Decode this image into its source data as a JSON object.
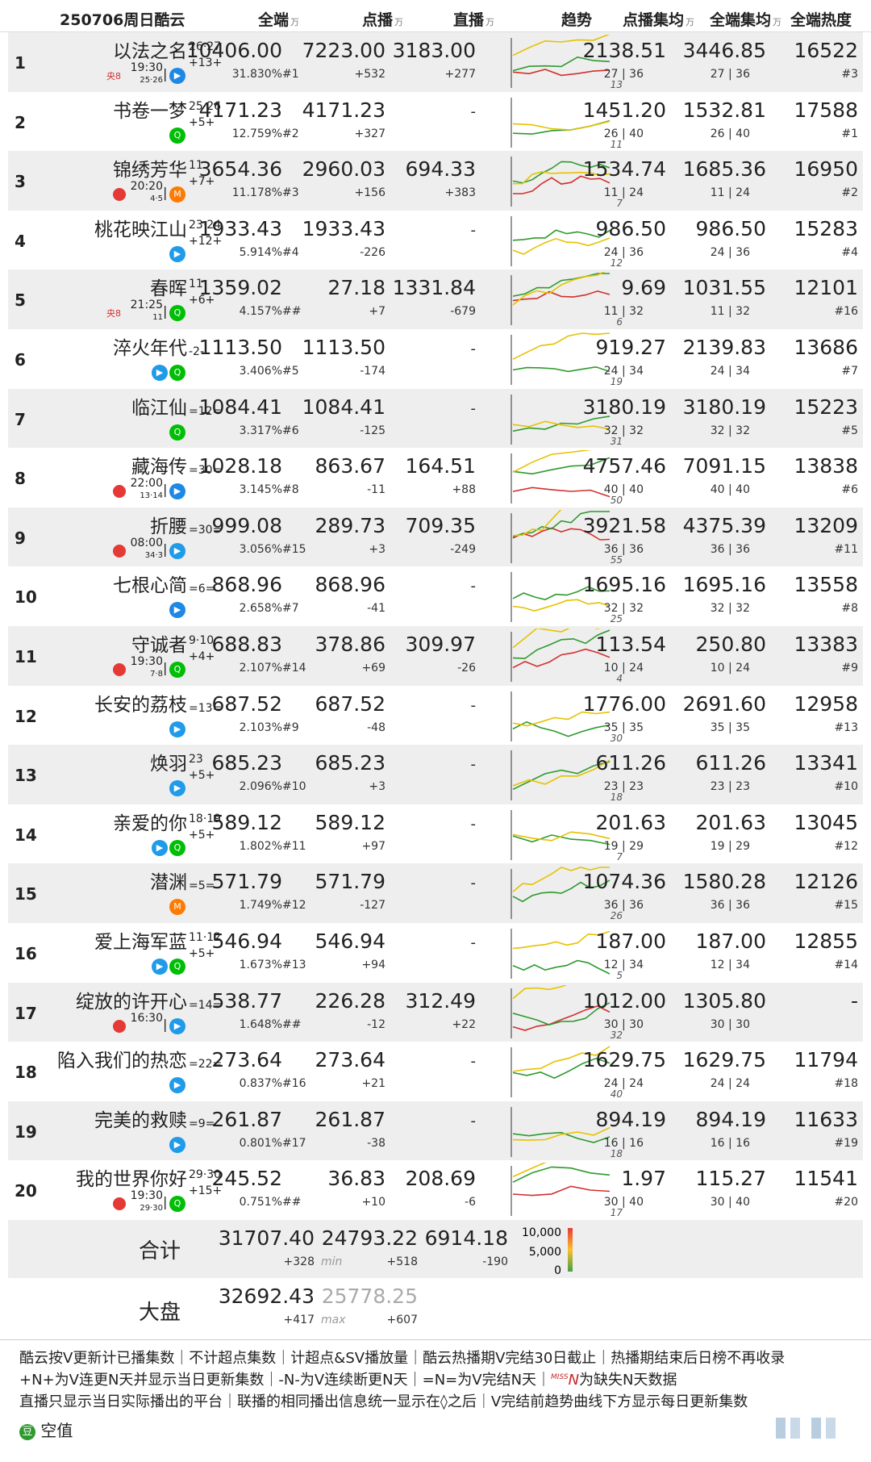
{
  "title": "250706周日酷云",
  "headers": {
    "all": "全端",
    "vod": "点播",
    "live": "直播",
    "trend": "趋势",
    "vod_avg": "点播集均",
    "all_avg": "全端集均",
    "heat": "全端热度",
    "unit": "万"
  },
  "chart_data": {
    "type": "table",
    "columns": [
      "rank",
      "name",
      "episodes",
      "update",
      "all",
      "all_pct",
      "vod",
      "vod_rank",
      "vod_delta",
      "live",
      "live_delta",
      "vod_avg",
      "vod_avg_eps",
      "all_avg",
      "all_avg_eps",
      "heat",
      "heat_rank",
      "trend_label",
      "channel_text",
      "channel_date",
      "platforms"
    ],
    "rows": [
      {
        "rank": "1",
        "name": "以法之名",
        "episodes": "26·27",
        "update": "+13+",
        "all": "10406.00",
        "all_pct": "31.830%",
        "vod": "7223.00",
        "vod_rank": "#1",
        "vod_delta": "+532",
        "live": "3183.00",
        "live_delta": "+277",
        "vod_avg": "2138.51",
        "vod_avg_eps": "27 | 36",
        "all_avg": "3446.85",
        "all_avg_eps": "27 | 36",
        "heat": "16522",
        "heat_rank": "#3",
        "trend_label": "13",
        "channel_text": "19:30",
        "channel_date": "25·26",
        "channel_tag": "央8",
        "platforms": [
          "youku"
        ]
      },
      {
        "rank": "2",
        "name": "书卷一梦",
        "episodes": "25·26",
        "update": "+5+",
        "all": "4171.23",
        "all_pct": "12.759%",
        "vod": "4171.23",
        "vod_rank": "#2",
        "vod_delta": "+327",
        "live": "-",
        "live_delta": "",
        "vod_avg": "1451.20",
        "vod_avg_eps": "26 | 40",
        "all_avg": "1532.81",
        "all_avg_eps": "26 | 40",
        "heat": "17588",
        "heat_rank": "#1",
        "trend_label": "11",
        "channel_text": "",
        "channel_date": "",
        "channel_tag": "",
        "platforms": [
          "iqiyi"
        ]
      },
      {
        "rank": "3",
        "name": "锦绣芳华",
        "episodes": "11",
        "update": "+7+",
        "all": "3654.36",
        "all_pct": "11.178%",
        "vod": "2960.03",
        "vod_rank": "#3",
        "vod_delta": "+156",
        "live": "694.33",
        "live_delta": "+383",
        "vod_avg": "1534.74",
        "vod_avg_eps": "11 | 24",
        "all_avg": "1685.36",
        "all_avg_eps": "11 | 24",
        "heat": "16950",
        "heat_rank": "#2",
        "trend_label": "7",
        "channel_text": "20:20",
        "channel_date": "4·5",
        "channel_tag": "",
        "platforms": [
          "mgtv"
        ]
      },
      {
        "rank": "4",
        "name": "桃花映江山",
        "episodes": "23·24",
        "update": "+12+",
        "all": "1933.43",
        "all_pct": "5.914%",
        "vod": "1933.43",
        "vod_rank": "#4",
        "vod_delta": "-226",
        "live": "-",
        "live_delta": "",
        "vod_avg": "986.50",
        "vod_avg_eps": "24 | 36",
        "all_avg": "986.50",
        "all_avg_eps": "24 | 36",
        "heat": "15283",
        "heat_rank": "#4",
        "trend_label": "12",
        "channel_text": "",
        "channel_date": "",
        "channel_tag": "",
        "platforms": [
          "tencent"
        ]
      },
      {
        "rank": "5",
        "name": "春晖",
        "episodes": "11",
        "update": "+6+",
        "all": "1359.02",
        "all_pct": "4.157%",
        "vod": "27.18",
        "vod_rank": "##",
        "vod_delta": "+7",
        "live": "1331.84",
        "live_delta": "-679",
        "vod_avg": "9.69",
        "vod_avg_eps": "11 | 32",
        "all_avg": "1031.55",
        "all_avg_eps": "11 | 32",
        "heat": "12101",
        "heat_rank": "#16",
        "trend_label": "6",
        "channel_text": "21:25",
        "channel_date": "11",
        "channel_tag": "央8",
        "platforms": [
          "iqiyi"
        ]
      },
      {
        "rank": "6",
        "name": "淬火年代",
        "episodes": "",
        "update": "-2-",
        "all": "1113.50",
        "all_pct": "3.406%",
        "vod": "1113.50",
        "vod_rank": "#5",
        "vod_delta": "-174",
        "live": "-",
        "live_delta": "",
        "vod_avg": "919.27",
        "vod_avg_eps": "24 | 34",
        "all_avg": "2139.83",
        "all_avg_eps": "24 | 34",
        "heat": "13686",
        "heat_rank": "#7",
        "trend_label": "19",
        "channel_text": "",
        "channel_date": "",
        "channel_tag": "",
        "platforms": [
          "tencent",
          "iqiyi"
        ]
      },
      {
        "rank": "7",
        "name": "临江仙",
        "episodes": "",
        "update": "=12=",
        "all": "1084.41",
        "all_pct": "3.317%",
        "vod": "1084.41",
        "vod_rank": "#6",
        "vod_delta": "-125",
        "live": "-",
        "live_delta": "",
        "vod_avg": "3180.19",
        "vod_avg_eps": "32 | 32",
        "all_avg": "3180.19",
        "all_avg_eps": "32 | 32",
        "heat": "15223",
        "heat_rank": "#5",
        "trend_label": "31",
        "channel_text": "",
        "channel_date": "",
        "channel_tag": "",
        "platforms": [
          "iqiyi"
        ]
      },
      {
        "rank": "8",
        "name": "藏海传",
        "episodes": "",
        "update": "=30=",
        "all": "1028.18",
        "all_pct": "3.145%",
        "vod": "863.67",
        "vod_rank": "#8",
        "vod_delta": "-11",
        "live": "164.51",
        "live_delta": "+88",
        "vod_avg": "4757.46",
        "vod_avg_eps": "40 | 40",
        "all_avg": "7091.15",
        "all_avg_eps": "40 | 40",
        "heat": "13838",
        "heat_rank": "#6",
        "trend_label": "50",
        "channel_text": "22:00",
        "channel_date": "13·14",
        "channel_tag": "",
        "platforms": [
          "youku"
        ]
      },
      {
        "rank": "9",
        "name": "折腰",
        "episodes": "",
        "update": "=30=",
        "all": "999.08",
        "all_pct": "3.056%",
        "vod": "289.73",
        "vod_rank": "#15",
        "vod_delta": "+3",
        "live": "709.35",
        "live_delta": "-249",
        "vod_avg": "3921.58",
        "vod_avg_eps": "36 | 36",
        "all_avg": "4375.39",
        "all_avg_eps": "36 | 36",
        "heat": "13209",
        "heat_rank": "#11",
        "trend_label": "55",
        "channel_text": "08:00",
        "channel_date": "34·3",
        "channel_tag": "",
        "platforms": [
          "tencent"
        ]
      },
      {
        "rank": "10",
        "name": "七根心简",
        "episodes": "",
        "update": "=6=",
        "all": "868.96",
        "all_pct": "2.658%",
        "vod": "868.96",
        "vod_rank": "#7",
        "vod_delta": "-41",
        "live": "-",
        "live_delta": "",
        "vod_avg": "1695.16",
        "vod_avg_eps": "32 | 32",
        "all_avg": "1695.16",
        "all_avg_eps": "32 | 32",
        "heat": "13558",
        "heat_rank": "#8",
        "trend_label": "25",
        "channel_text": "",
        "channel_date": "",
        "channel_tag": "",
        "platforms": [
          "youku"
        ]
      },
      {
        "rank": "11",
        "name": "守诚者",
        "episodes": "9·10",
        "update": "+4+",
        "all": "688.83",
        "all_pct": "2.107%",
        "vod": "378.86",
        "vod_rank": "#14",
        "vod_delta": "+69",
        "live": "309.97",
        "live_delta": "-26",
        "vod_avg": "113.54",
        "vod_avg_eps": "10 | 24",
        "all_avg": "250.80",
        "all_avg_eps": "10 | 24",
        "heat": "13383",
        "heat_rank": "#9",
        "trend_label": "4",
        "channel_text": "19:30",
        "channel_date": "7·8",
        "channel_tag": "",
        "platforms": [
          "iqiyi"
        ]
      },
      {
        "rank": "12",
        "name": "长安的荔枝",
        "episodes": "",
        "update": "=13=",
        "all": "687.52",
        "all_pct": "2.103%",
        "vod": "687.52",
        "vod_rank": "#9",
        "vod_delta": "-48",
        "live": "-",
        "live_delta": "",
        "vod_avg": "1776.00",
        "vod_avg_eps": "35 | 35",
        "all_avg": "2691.60",
        "all_avg_eps": "35 | 35",
        "heat": "12958",
        "heat_rank": "#13",
        "trend_label": "30",
        "channel_text": "",
        "channel_date": "",
        "channel_tag": "",
        "platforms": [
          "tencent"
        ]
      },
      {
        "rank": "13",
        "name": "焕羽",
        "episodes": "23",
        "update": "+5+",
        "all": "685.23",
        "all_pct": "2.096%",
        "vod": "685.23",
        "vod_rank": "#10",
        "vod_delta": "+3",
        "live": "-",
        "live_delta": "",
        "vod_avg": "611.26",
        "vod_avg_eps": "23 | 23",
        "all_avg": "611.26",
        "all_avg_eps": "23 | 23",
        "heat": "13341",
        "heat_rank": "#10",
        "trend_label": "18",
        "channel_text": "",
        "channel_date": "",
        "channel_tag": "",
        "platforms": [
          "tencent"
        ]
      },
      {
        "rank": "14",
        "name": "亲爱的你",
        "episodes": "18·19",
        "update": "+5+",
        "all": "589.12",
        "all_pct": "1.802%",
        "vod": "589.12",
        "vod_rank": "#11",
        "vod_delta": "+97",
        "live": "-",
        "live_delta": "",
        "vod_avg": "201.63",
        "vod_avg_eps": "19 | 29",
        "all_avg": "201.63",
        "all_avg_eps": "19 | 29",
        "heat": "13045",
        "heat_rank": "#12",
        "trend_label": "7",
        "channel_text": "",
        "channel_date": "",
        "channel_tag": "",
        "platforms": [
          "tencent",
          "iqiyi"
        ]
      },
      {
        "rank": "15",
        "name": "潜渊",
        "episodes": "",
        "update": "=5=",
        "all": "571.79",
        "all_pct": "1.749%",
        "vod": "571.79",
        "vod_rank": "#12",
        "vod_delta": "-127",
        "live": "-",
        "live_delta": "",
        "vod_avg": "1074.36",
        "vod_avg_eps": "36 | 36",
        "all_avg": "1580.28",
        "all_avg_eps": "36 | 36",
        "heat": "12126",
        "heat_rank": "#15",
        "trend_label": "26",
        "channel_text": "",
        "channel_date": "",
        "channel_tag": "",
        "platforms": [
          "mgtv"
        ]
      },
      {
        "rank": "16",
        "name": "爱上海军蓝",
        "episodes": "11·12",
        "update": "+5+",
        "all": "546.94",
        "all_pct": "1.673%",
        "vod": "546.94",
        "vod_rank": "#13",
        "vod_delta": "+94",
        "live": "-",
        "live_delta": "",
        "vod_avg": "187.00",
        "vod_avg_eps": "12 | 34",
        "all_avg": "187.00",
        "all_avg_eps": "12 | 34",
        "heat": "12855",
        "heat_rank": "#14",
        "trend_label": "5",
        "channel_text": "",
        "channel_date": "",
        "channel_tag": "",
        "platforms": [
          "tencent",
          "iqiyi"
        ]
      },
      {
        "rank": "17",
        "name": "绽放的许开心",
        "episodes": "",
        "update": "=14=",
        "all": "538.77",
        "all_pct": "1.648%",
        "vod": "226.28",
        "vod_rank": "##",
        "vod_delta": "-12",
        "live": "312.49",
        "live_delta": "+22",
        "vod_avg": "1012.00",
        "vod_avg_eps": "30 | 30",
        "all_avg": "1305.80",
        "all_avg_eps": "30 | 30",
        "heat": "-",
        "heat_rank": "",
        "trend_label": "32",
        "channel_text": "16:30",
        "channel_date": "",
        "channel_tag": "",
        "platforms": [
          "tencent"
        ]
      },
      {
        "rank": "18",
        "name": "陷入我们的热恋",
        "episodes": "",
        "update": "=22=",
        "all": "273.64",
        "all_pct": "0.837%",
        "vod": "273.64",
        "vod_rank": "#16",
        "vod_delta": "+21",
        "live": "-",
        "live_delta": "",
        "vod_avg": "1629.75",
        "vod_avg_eps": "24 | 24",
        "all_avg": "1629.75",
        "all_avg_eps": "24 | 24",
        "heat": "11794",
        "heat_rank": "#18",
        "trend_label": "40",
        "channel_text": "",
        "channel_date": "",
        "channel_tag": "",
        "platforms": [
          "tencent"
        ]
      },
      {
        "rank": "19",
        "name": "完美的救赎",
        "episodes": "",
        "update": "=9=",
        "all": "261.87",
        "all_pct": "0.801%",
        "vod": "261.87",
        "vod_rank": "#17",
        "vod_delta": "-38",
        "live": "-",
        "live_delta": "",
        "vod_avg": "894.19",
        "vod_avg_eps": "16 | 16",
        "all_avg": "894.19",
        "all_avg_eps": "16 | 16",
        "heat": "11633",
        "heat_rank": "#19",
        "trend_label": "18",
        "channel_text": "",
        "channel_date": "",
        "channel_tag": "",
        "platforms": [
          "tencent"
        ]
      },
      {
        "rank": "20",
        "name": "我的世界你好",
        "episodes": "29·30",
        "update": "+15+",
        "all": "245.52",
        "all_pct": "0.751%",
        "vod": "36.83",
        "vod_rank": "##",
        "vod_delta": "+10",
        "live": "208.69",
        "live_delta": "-6",
        "vod_avg": "1.97",
        "vod_avg_eps": "30 | 40",
        "all_avg": "115.27",
        "all_avg_eps": "30 | 40",
        "heat": "11541",
        "heat_rank": "#20",
        "trend_label": "17",
        "channel_text": "19:30",
        "channel_date": "29·30",
        "channel_tag": "",
        "platforms": [
          "iqiyi"
        ]
      }
    ],
    "totals": {
      "label": "合计",
      "all": "31707.40",
      "all_delta": "+328",
      "vod": "24793.22",
      "vod_note": "min",
      "vod_delta": "+518",
      "live": "6914.18",
      "live_delta": "-190"
    },
    "market": {
      "label": "大盘",
      "all": "32692.43",
      "all_delta": "+417",
      "vod": "25778.25",
      "vod_note": "max",
      "vod_delta": "+607"
    },
    "scale": {
      "labels": [
        "10,000",
        "5,000",
        "0"
      ],
      "colors": [
        "#e53935",
        "#fbc02d",
        "#43a047"
      ]
    }
  },
  "notes": [
    "酷云按V更新计已播集数｜不计超点集数｜计超点&SV播放量｜酷云热播期V完结30日截止｜热播期结束后日榜不再收录",
    "+N+为V连更N天并显示当日更新集数｜-N-为V连续断更N天｜=N=为V完结N天｜",
    "为缺失N天数据",
    "直播只显示当日实际播出的平台｜联播的相同播出信息统一显示在◊之后｜V完结前趋势曲线下方显示每日更新集数"
  ],
  "miss_tag": "MISS",
  "miss_n": "N",
  "brand": "空值",
  "brand_icon": "豆",
  "colors": {
    "row_alt": "#eeeeee",
    "green": "#2e9a2e",
    "yellow": "#e6c200",
    "red": "#d32f2f",
    "tencent": "#1f9bea",
    "iqiyi": "#00be06",
    "youku": "#1e88e5",
    "mgtv": "#ff7a00"
  }
}
